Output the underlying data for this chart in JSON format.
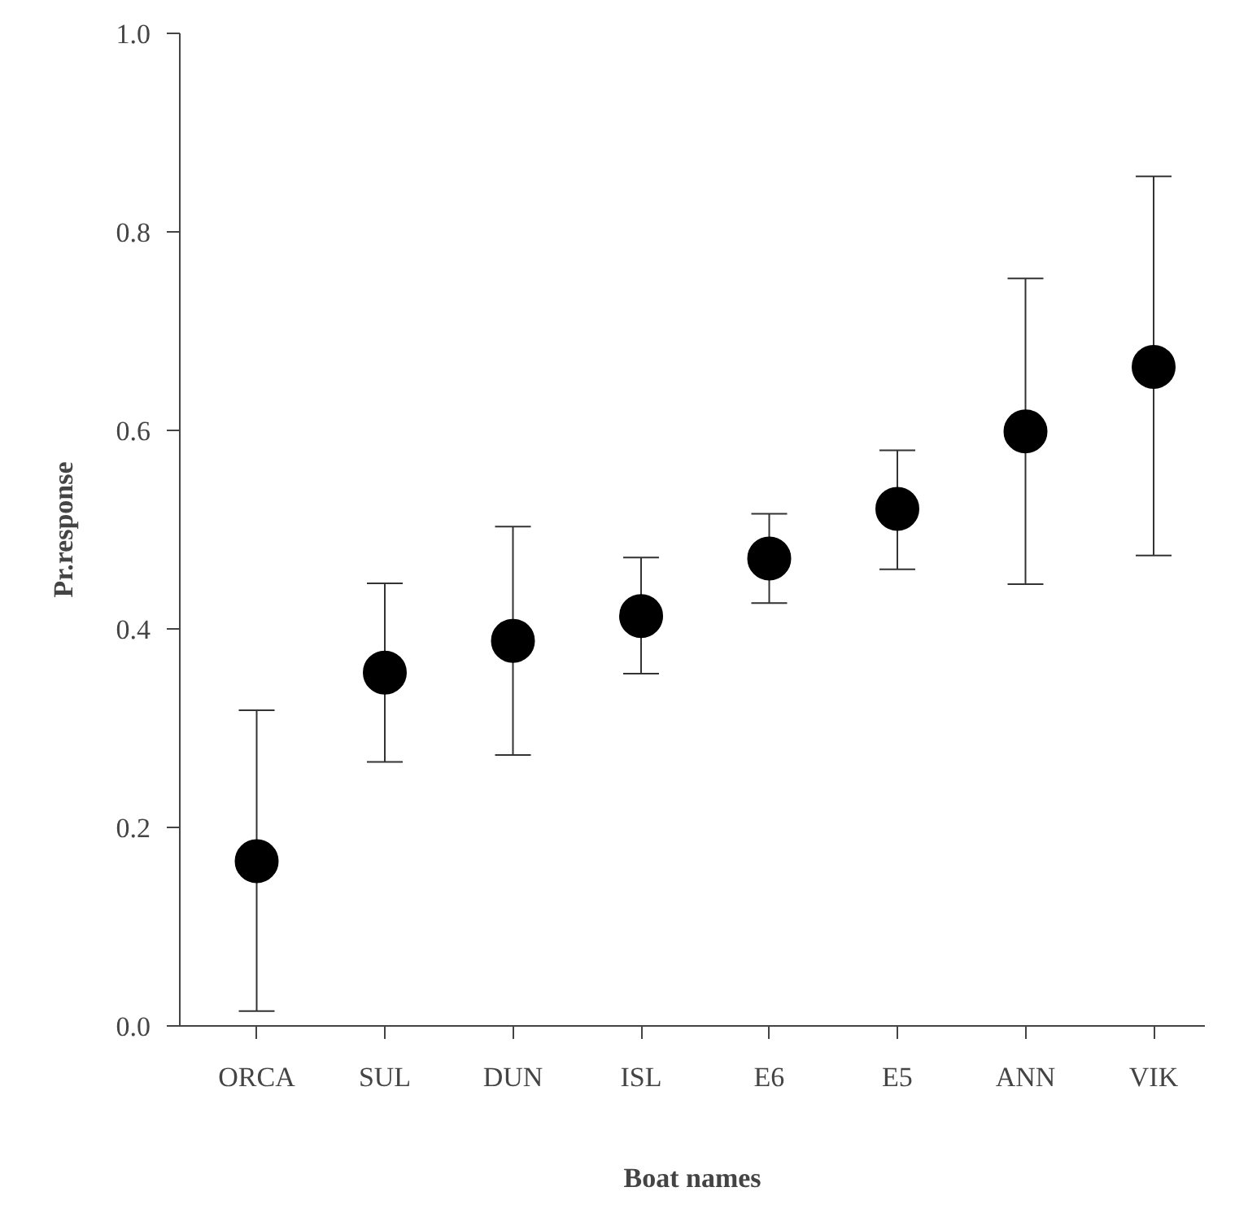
{
  "chart_data": {
    "type": "scatter",
    "xlabel": "Boat names",
    "ylabel": "Pr.response",
    "categories": [
      "ORCA",
      "SUL",
      "DUN",
      "ISL",
      "E6",
      "E5",
      "ANN",
      "VIK"
    ],
    "values": [
      0.166,
      0.356,
      0.388,
      0.413,
      0.471,
      0.521,
      0.599,
      0.664
    ],
    "errors": [
      [
        0.015,
        0.318
      ],
      [
        0.266,
        0.446
      ],
      [
        0.273,
        0.503
      ],
      [
        0.355,
        0.472
      ],
      [
        0.426,
        0.516
      ],
      [
        0.46,
        0.58
      ],
      [
        0.445,
        0.753
      ],
      [
        0.474,
        0.856
      ]
    ],
    "color": "#000000",
    "marker": "circle",
    "ylim": [
      0,
      1
    ],
    "yticks": [
      {
        "value": 0,
        "label": "0.0"
      },
      {
        "value": 0.2,
        "label": "0.2"
      },
      {
        "value": 0.4,
        "label": "0.4"
      },
      {
        "value": 0.6,
        "label": "0.6"
      },
      {
        "value": 0.8,
        "label": "0.8"
      },
      {
        "value": 1,
        "label": "1.0"
      }
    ],
    "grid": false
  }
}
